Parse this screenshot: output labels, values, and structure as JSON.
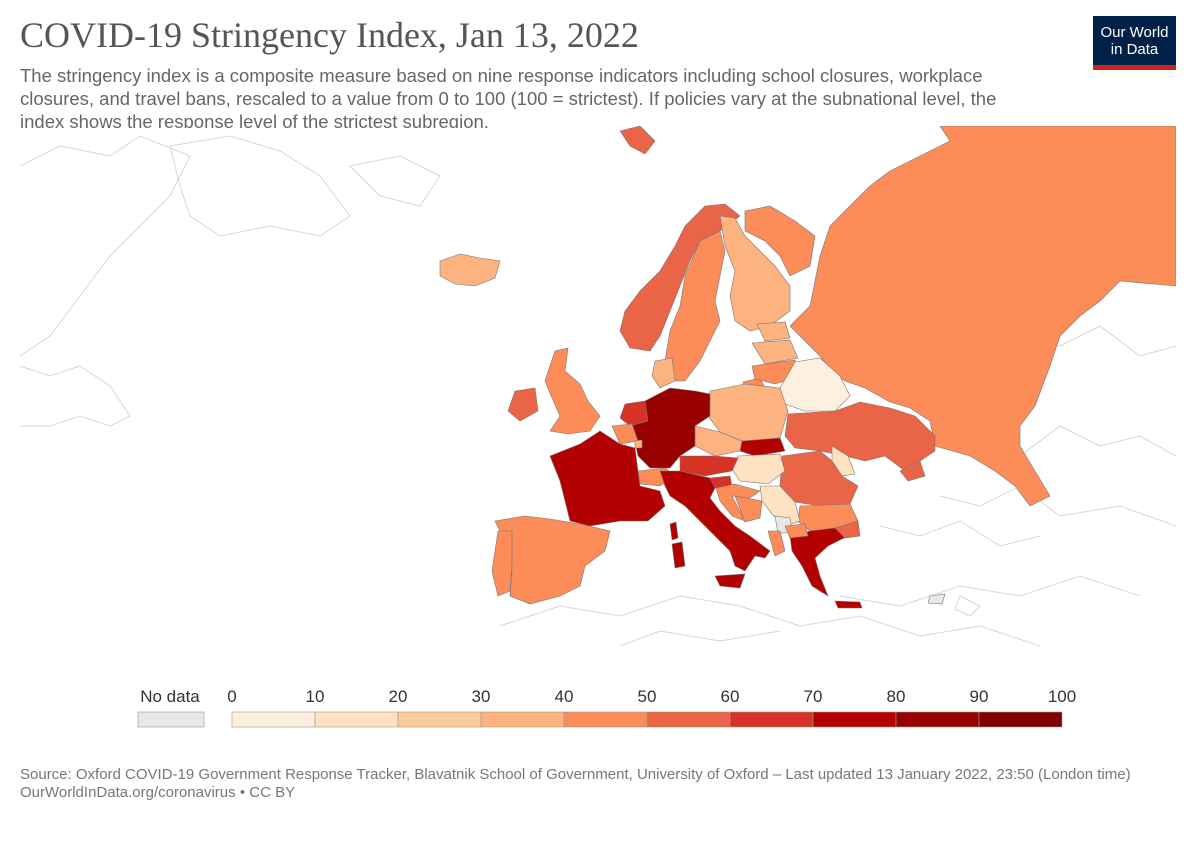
{
  "header": {
    "title": "COVID-19 Stringency Index, Jan 13, 2022",
    "subtitle": "The stringency index is a composite measure based on nine response indicators including school closures, workplace closures, and travel bans, rescaled to a value from 0 to 100 (100 = strictest). If policies vary at the subnational level, the index shows the response level of the strictest subregion."
  },
  "logo": {
    "line1": "Our World",
    "line2": "in Data",
    "bg_color": "#002147",
    "accent_color": "#ce261e"
  },
  "legend": {
    "no_data_label": "No data",
    "no_data_color": "#e8e8e8",
    "ticks": [
      "0",
      "10",
      "20",
      "30",
      "40",
      "50",
      "60",
      "70",
      "80",
      "90",
      "100"
    ],
    "bins": [
      {
        "range": [
          0,
          10
        ],
        "color": "#fef0e1"
      },
      {
        "range": [
          10,
          20
        ],
        "color": "#fde1c0"
      },
      {
        "range": [
          20,
          30
        ],
        "color": "#fdcb96"
      },
      {
        "range": [
          30,
          40
        ],
        "color": "#fcb37f"
      },
      {
        "range": [
          40,
          50
        ],
        "color": "#fc8d59"
      },
      {
        "range": [
          50,
          60
        ],
        "color": "#ea6447"
      },
      {
        "range": [
          60,
          70
        ],
        "color": "#d63326"
      },
      {
        "range": [
          70,
          80
        ],
        "color": "#b30000"
      },
      {
        "range": [
          80,
          90
        ],
        "color": "#990000"
      },
      {
        "range": [
          90,
          100
        ],
        "color": "#7f0000"
      }
    ]
  },
  "source": {
    "line1": "Source: Oxford COVID-19 Government Response Tracker, Blavatnik School of Government, University of Oxford – Last updated 13 January 2022, 23:50 (London time)",
    "line2": "OurWorldInData.org/coronavirus • CC BY"
  }
}
